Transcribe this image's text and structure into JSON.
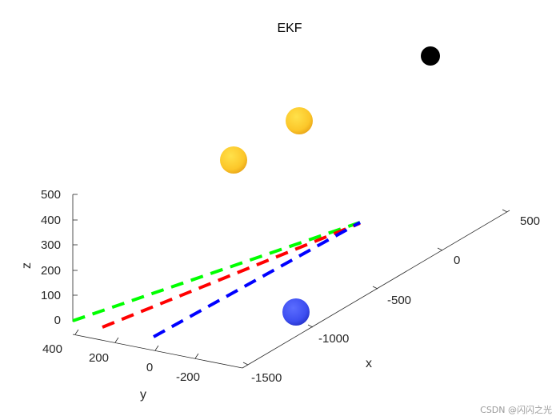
{
  "chart_data": {
    "type": "3d-line-scatter",
    "title": "EKF",
    "xlabel": "x",
    "ylabel": "y",
    "zlabel": "z",
    "x_ticks": [
      "500",
      "0",
      "-500",
      "-1000",
      "-1500"
    ],
    "y_ticks": [
      "400",
      "200",
      "0",
      "-200"
    ],
    "z_ticks": [
      "500",
      "400",
      "300",
      "200",
      "100",
      "0"
    ],
    "xlim": [
      -1500,
      500
    ],
    "ylim": [
      -300,
      400
    ],
    "zlim": [
      0,
      500
    ],
    "series": [
      {
        "color": "#00ff00",
        "style": "dashed",
        "x": [
          -1500,
          0
        ],
        "y": [
          400,
          120
        ],
        "z": [
          0,
          0
        ]
      },
      {
        "color": "#ff0000",
        "style": "dashed",
        "x": [
          -1500,
          0
        ],
        "y": [
          300,
          100
        ],
        "z": [
          0,
          0
        ]
      },
      {
        "color": "#0000ff",
        "style": "dashed",
        "x": [
          -1500,
          0
        ],
        "y": [
          -50,
          80
        ],
        "z": [
          0,
          0
        ]
      }
    ],
    "markers": [
      {
        "type": "sphere",
        "color": "#ffd21f",
        "shade": "#e8a317"
      },
      {
        "type": "sphere",
        "color": "#ffd21f",
        "shade": "#e8a317"
      },
      {
        "type": "sphere",
        "color": "#000000",
        "shade": "#000000"
      },
      {
        "type": "sphere",
        "color": "#4a5cff",
        "shade": "#2633c8"
      }
    ]
  },
  "watermark": "CSDN @闪闪之光"
}
